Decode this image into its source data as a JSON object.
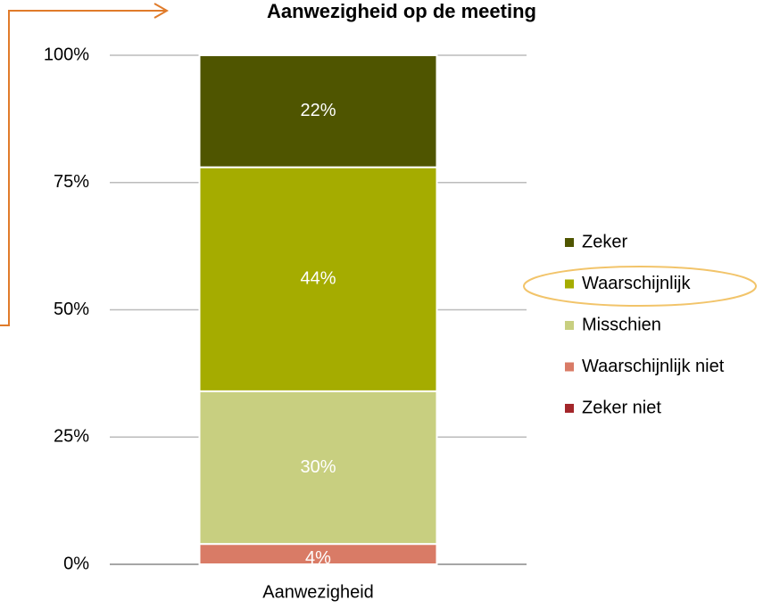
{
  "chart_data": {
    "type": "stacked_bar",
    "title": "Aanwezigheid op de meeting",
    "categories": [
      "Aanwezigheid"
    ],
    "series": [
      {
        "name": "Zeker niet",
        "color": "#a3262a",
        "values": [
          0
        ]
      },
      {
        "name": "Waarschijnlijk niet",
        "color": "#d97b66",
        "values": [
          4
        ],
        "value_labels": [
          "4%"
        ]
      },
      {
        "name": "Misschien",
        "color": "#c8cf80",
        "values": [
          30
        ],
        "value_labels": [
          "30%"
        ]
      },
      {
        "name": "Waarschijnlijk",
        "color": "#a5ac00",
        "values": [
          44
        ],
        "value_labels": [
          "44%"
        ]
      },
      {
        "name": "Zeker",
        "color": "#4f5500",
        "values": [
          22
        ],
        "value_labels": [
          "22%"
        ]
      }
    ],
    "ylim": [
      0,
      100
    ],
    "yticks": [
      {
        "value": 0,
        "label": "0%"
      },
      {
        "value": 25,
        "label": "25%"
      },
      {
        "value": 50,
        "label": "50%"
      },
      {
        "value": 75,
        "label": "75%"
      },
      {
        "value": 100,
        "label": "100%"
      }
    ],
    "grid": true,
    "legend": "right"
  }
}
